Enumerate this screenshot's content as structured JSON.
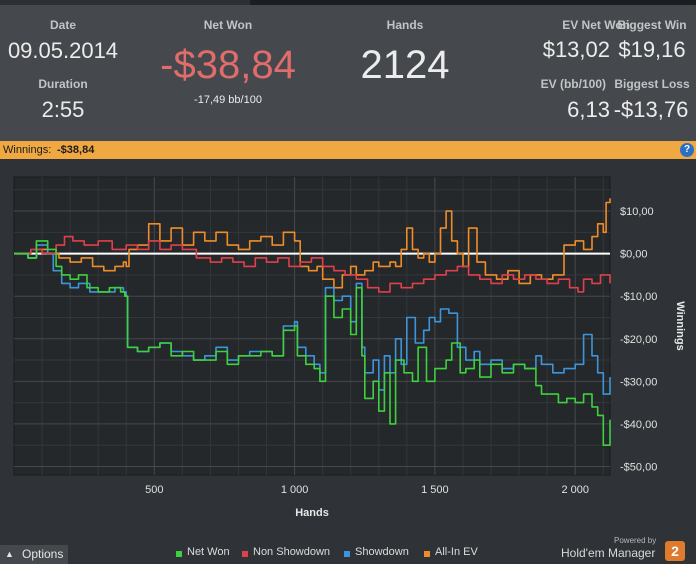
{
  "summary": {
    "date_label": "Date",
    "date_value": "09.05.2014",
    "duration_label": "Duration",
    "duration_value": "2:55",
    "net_won_label": "Net Won",
    "net_won_value": "-$38,84",
    "net_won_rate": "-17,49 bb/100",
    "hands_label": "Hands",
    "hands_value": "2124",
    "ev_net_won_label": "EV Net Won",
    "ev_net_won_value": "$13,02",
    "ev_bb_label": "EV (bb/100)",
    "ev_bb_value": "6,13",
    "biggest_win_label": "Biggest Win",
    "biggest_win_value": "$19,16",
    "biggest_loss_label": "Biggest Loss",
    "biggest_loss_value": "-$13,76"
  },
  "winnings_bar": {
    "label": "Winnings:",
    "value": "-$38,84",
    "help_icon": "?"
  },
  "footer": {
    "options_label": "Options",
    "options_icon": "chevron-up-icon",
    "powered_by": "Powered by",
    "brand": "Hold'em Manager",
    "brand_badge": "2"
  },
  "colors": {
    "net_won": "#3ed13e",
    "non_showdown": "#e0404a",
    "showdown": "#3c95dc",
    "all_in_ev": "#f08c28",
    "zero_line": "#ffffff",
    "negative": "#e06c6c",
    "bar_orange": "#f0a843"
  },
  "chart_data": {
    "type": "line",
    "xlabel": "Hands",
    "ylabel": "Winnings",
    "xlim": [
      0,
      2124
    ],
    "ylim": [
      -52,
      18
    ],
    "x_ticks": [
      500,
      1000,
      1500,
      2000
    ],
    "x_tick_labels": [
      "500",
      "1 000",
      "1 500",
      "2 000"
    ],
    "y_ticks": [
      10,
      0,
      -10,
      -20,
      -30,
      -40,
      -50
    ],
    "y_tick_labels": [
      "$10,00",
      "$0,00",
      "-$10,00",
      "-$20,00",
      "-$30,00",
      "-$40,00",
      "-$50,00"
    ],
    "grid": true,
    "legend_position": "bottom",
    "series": [
      {
        "name": "Net Won",
        "color": "#3ed13e",
        "points": [
          [
            0,
            0
          ],
          [
            50,
            -1
          ],
          [
            80,
            3
          ],
          [
            120,
            1
          ],
          [
            150,
            -3
          ],
          [
            170,
            -5
          ],
          [
            200,
            -6
          ],
          [
            230,
            -5
          ],
          [
            260,
            -8
          ],
          [
            300,
            -9
          ],
          [
            340,
            -8
          ],
          [
            380,
            -9
          ],
          [
            395,
            -10
          ],
          [
            400,
            -10
          ],
          [
            405,
            -22
          ],
          [
            440,
            -23
          ],
          [
            480,
            -22
          ],
          [
            520,
            -21
          ],
          [
            560,
            -24
          ],
          [
            600,
            -23
          ],
          [
            640,
            -25
          ],
          [
            680,
            -25
          ],
          [
            720,
            -23
          ],
          [
            760,
            -26
          ],
          [
            800,
            -24
          ],
          [
            840,
            -24
          ],
          [
            880,
            -23
          ],
          [
            920,
            -24
          ],
          [
            960,
            -18
          ],
          [
            1000,
            -17
          ],
          [
            1010,
            -24
          ],
          [
            1040,
            -26
          ],
          [
            1070,
            -27
          ],
          [
            1090,
            -30
          ],
          [
            1110,
            -10
          ],
          [
            1140,
            -15
          ],
          [
            1170,
            -13
          ],
          [
            1200,
            -19
          ],
          [
            1220,
            -8
          ],
          [
            1240,
            -24
          ],
          [
            1250,
            -34
          ],
          [
            1280,
            -30
          ],
          [
            1300,
            -37
          ],
          [
            1320,
            -28
          ],
          [
            1340,
            -40
          ],
          [
            1360,
            -25
          ],
          [
            1390,
            -28
          ],
          [
            1420,
            -30
          ],
          [
            1440,
            -22
          ],
          [
            1470,
            -30
          ],
          [
            1500,
            -27
          ],
          [
            1540,
            -25
          ],
          [
            1560,
            -21
          ],
          [
            1590,
            -28
          ],
          [
            1610,
            -27
          ],
          [
            1640,
            -25
          ],
          [
            1660,
            -29
          ],
          [
            1700,
            -26
          ],
          [
            1740,
            -28
          ],
          [
            1780,
            -26
          ],
          [
            1820,
            -27
          ],
          [
            1860,
            -31
          ],
          [
            1880,
            -33
          ],
          [
            1910,
            -33
          ],
          [
            1940,
            -35
          ],
          [
            1970,
            -34
          ],
          [
            2000,
            -35
          ],
          [
            2030,
            -33
          ],
          [
            2060,
            -36
          ],
          [
            2080,
            -38
          ],
          [
            2100,
            -45
          ],
          [
            2124,
            -39
          ]
        ]
      },
      {
        "name": "Non Showdown",
        "color": "#e0404a",
        "points": [
          [
            0,
            0
          ],
          [
            60,
            1
          ],
          [
            100,
            0
          ],
          [
            150,
            2
          ],
          [
            180,
            4
          ],
          [
            210,
            3
          ],
          [
            250,
            2
          ],
          [
            300,
            3
          ],
          [
            350,
            1
          ],
          [
            400,
            2
          ],
          [
            440,
            1
          ],
          [
            480,
            3
          ],
          [
            520,
            1
          ],
          [
            560,
            2
          ],
          [
            600,
            1
          ],
          [
            650,
            -1
          ],
          [
            700,
            -2
          ],
          [
            740,
            -1
          ],
          [
            780,
            -2
          ],
          [
            820,
            -3
          ],
          [
            860,
            -1
          ],
          [
            900,
            -2
          ],
          [
            940,
            -1
          ],
          [
            980,
            -3
          ],
          [
            1020,
            -2
          ],
          [
            1060,
            -1
          ],
          [
            1100,
            -3
          ],
          [
            1140,
            -4
          ],
          [
            1180,
            -5
          ],
          [
            1220,
            -6
          ],
          [
            1260,
            -8
          ],
          [
            1300,
            -9
          ],
          [
            1340,
            -7
          ],
          [
            1380,
            -8
          ],
          [
            1420,
            -7
          ],
          [
            1460,
            -6
          ],
          [
            1500,
            -5
          ],
          [
            1540,
            -4
          ],
          [
            1580,
            -3
          ],
          [
            1620,
            -5
          ],
          [
            1660,
            -6
          ],
          [
            1700,
            -7
          ],
          [
            1740,
            -5
          ],
          [
            1780,
            -6
          ],
          [
            1820,
            -5
          ],
          [
            1860,
            -6
          ],
          [
            1900,
            -7
          ],
          [
            1940,
            -6
          ],
          [
            1980,
            -8
          ],
          [
            2010,
            -9
          ],
          [
            2030,
            -6
          ],
          [
            2060,
            -7
          ],
          [
            2090,
            -5
          ],
          [
            2124,
            -7
          ]
        ]
      },
      {
        "name": "Showdown",
        "color": "#3c95dc",
        "points": [
          [
            0,
            0
          ],
          [
            50,
            -1
          ],
          [
            80,
            2
          ],
          [
            120,
            0
          ],
          [
            140,
            -4
          ],
          [
            170,
            -7
          ],
          [
            200,
            -8
          ],
          [
            230,
            -7
          ],
          [
            270,
            -9
          ],
          [
            320,
            -9
          ],
          [
            360,
            -8
          ],
          [
            390,
            -9
          ],
          [
            400,
            -10
          ],
          [
            405,
            -22
          ],
          [
            440,
            -23
          ],
          [
            480,
            -22
          ],
          [
            520,
            -21
          ],
          [
            560,
            -23
          ],
          [
            600,
            -24
          ],
          [
            640,
            -25
          ],
          [
            680,
            -24
          ],
          [
            720,
            -22
          ],
          [
            760,
            -25
          ],
          [
            800,
            -24
          ],
          [
            840,
            -23
          ],
          [
            880,
            -23
          ],
          [
            920,
            -24
          ],
          [
            960,
            -17
          ],
          [
            1000,
            -16
          ],
          [
            1010,
            -22
          ],
          [
            1040,
            -24
          ],
          [
            1070,
            -26
          ],
          [
            1090,
            -28
          ],
          [
            1110,
            -8
          ],
          [
            1140,
            -11
          ],
          [
            1170,
            -10
          ],
          [
            1200,
            -16
          ],
          [
            1220,
            -7
          ],
          [
            1240,
            -22
          ],
          [
            1250,
            -28
          ],
          [
            1280,
            -25
          ],
          [
            1300,
            -32
          ],
          [
            1320,
            -24
          ],
          [
            1340,
            -28
          ],
          [
            1360,
            -20
          ],
          [
            1380,
            -26
          ],
          [
            1400,
            -15
          ],
          [
            1430,
            -21
          ],
          [
            1460,
            -18
          ],
          [
            1480,
            -15
          ],
          [
            1500,
            -16
          ],
          [
            1520,
            -13
          ],
          [
            1550,
            -14
          ],
          [
            1580,
            -22
          ],
          [
            1610,
            -25
          ],
          [
            1640,
            -23
          ],
          [
            1660,
            -26
          ],
          [
            1700,
            -25
          ],
          [
            1740,
            -27
          ],
          [
            1780,
            -26
          ],
          [
            1820,
            -27
          ],
          [
            1860,
            -24
          ],
          [
            1880,
            -26
          ],
          [
            1920,
            -28
          ],
          [
            1960,
            -27
          ],
          [
            2000,
            -26
          ],
          [
            2030,
            -19
          ],
          [
            2060,
            -24
          ],
          [
            2080,
            -28
          ],
          [
            2100,
            -33
          ],
          [
            2124,
            -29
          ]
        ]
      },
      {
        "name": "All-In EV",
        "color": "#f08c28",
        "points": [
          [
            0,
            0
          ],
          [
            50,
            -1
          ],
          [
            80,
            1
          ],
          [
            120,
            0
          ],
          [
            160,
            -1
          ],
          [
            200,
            -2
          ],
          [
            240,
            -1
          ],
          [
            280,
            -3
          ],
          [
            320,
            -4
          ],
          [
            360,
            -3
          ],
          [
            390,
            -2
          ],
          [
            400,
            -3
          ],
          [
            410,
            1
          ],
          [
            440,
            2
          ],
          [
            480,
            7
          ],
          [
            520,
            3
          ],
          [
            560,
            6
          ],
          [
            600,
            2
          ],
          [
            640,
            5
          ],
          [
            680,
            3
          ],
          [
            720,
            5
          ],
          [
            760,
            2
          ],
          [
            800,
            1
          ],
          [
            840,
            3
          ],
          [
            880,
            4
          ],
          [
            920,
            2
          ],
          [
            960,
            5
          ],
          [
            1000,
            3
          ],
          [
            1020,
            -3
          ],
          [
            1050,
            -4
          ],
          [
            1080,
            -3
          ],
          [
            1100,
            -6
          ],
          [
            1140,
            -8
          ],
          [
            1170,
            -5
          ],
          [
            1200,
            -3
          ],
          [
            1220,
            -5
          ],
          [
            1250,
            -4
          ],
          [
            1280,
            -2
          ],
          [
            1300,
            -3
          ],
          [
            1340,
            -2
          ],
          [
            1360,
            -3
          ],
          [
            1380,
            1
          ],
          [
            1400,
            6
          ],
          [
            1420,
            1
          ],
          [
            1440,
            -1
          ],
          [
            1460,
            0
          ],
          [
            1480,
            -2
          ],
          [
            1500,
            0
          ],
          [
            1520,
            6
          ],
          [
            1540,
            10
          ],
          [
            1560,
            3
          ],
          [
            1580,
            0
          ],
          [
            1600,
            -3
          ],
          [
            1620,
            6
          ],
          [
            1650,
            -2
          ],
          [
            1680,
            -5
          ],
          [
            1720,
            -6
          ],
          [
            1760,
            -4
          ],
          [
            1800,
            -7
          ],
          [
            1840,
            -5
          ],
          [
            1880,
            -6
          ],
          [
            1920,
            -5
          ],
          [
            1960,
            2
          ],
          [
            2000,
            3
          ],
          [
            2030,
            1
          ],
          [
            2060,
            4
          ],
          [
            2080,
            7
          ],
          [
            2100,
            5
          ],
          [
            2110,
            12
          ],
          [
            2124,
            13
          ]
        ]
      }
    ]
  }
}
